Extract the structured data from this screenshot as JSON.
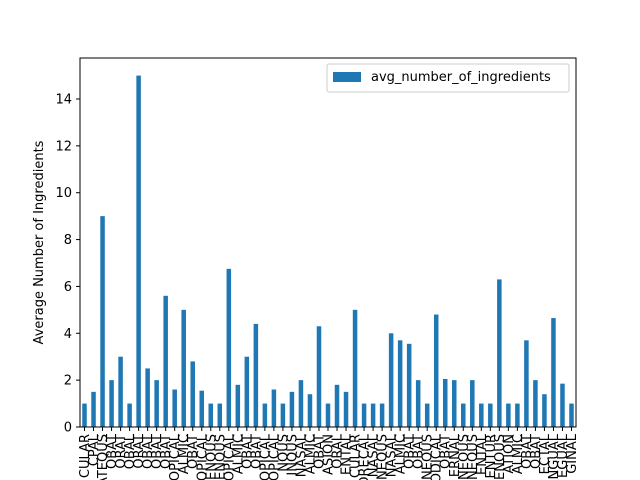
{
  "chart_data": {
    "type": "bar",
    "title": "",
    "xlabel": "",
    "ylabel": "Average Number of Ingredients",
    "ylim": [
      0,
      15.75
    ],
    "yticks": [
      0,
      2,
      4,
      6,
      8,
      10,
      12,
      14
    ],
    "grid": false,
    "legend_position": "top-right",
    "bar_color": "#1f77b4",
    "series": [
      {
        "name": "avg_number_of_ingredients",
        "values": [
          1.0,
          1.5,
          9.0,
          2.0,
          3.0,
          1.0,
          15.0,
          2.5,
          2.0,
          5.6,
          1.6,
          5.0,
          2.8,
          1.55,
          1.0,
          1.0,
          6.75,
          1.8,
          3.0,
          4.4,
          1.0,
          1.6,
          1.0,
          1.5,
          2.0,
          1.4,
          4.3,
          1.0,
          1.8,
          1.5,
          5.0,
          1.0,
          1.0,
          1.0,
          4.0,
          3.7,
          3.55,
          2.0,
          1.0,
          4.8,
          2.05,
          2.0,
          1.0,
          2.0,
          1.0,
          1.0,
          6.3,
          1.0,
          1.0,
          3.7,
          2.0,
          1.4,
          4.65,
          1.85,
          1.0
        ]
      }
    ],
    "categories": [
      "CULAR",
      "CPAL",
      "ATEQUS",
      "OBAT",
      "ORAT",
      "OBAL",
      "ORAT",
      "OBAT",
      "OBAT",
      "OBAT",
      "OPICAL",
      "ALMIC",
      "OBAT",
      "OPICAL",
      "ENOUS",
      "ENOUS",
      "OPICAL",
      "ALMIC",
      "OBAT",
      "OBAT",
      "OPICAL",
      "OPICAL",
      "NQUS",
      "INOUS",
      "NASAL",
      "ALMIC",
      "OBAT",
      "ASION",
      "ORAL",
      "ENTAL",
      "CULAR",
      "ORECAL",
      "NASAL",
      "NEOUS",
      "NASAL",
      "ALMIC",
      "OBAT",
      "OBAT",
      "NEOUS",
      "ODICAL",
      "OBAT",
      "ERNAL",
      "ENEOUS",
      "NEOUS",
      "ENTAL",
      "ENTUR",
      "ENOUS",
      "ATION",
      "ALMIC",
      "OBAT",
      "OBAT",
      "ECTAL",
      "NGUAL",
      "EGUAL",
      "GINAL"
    ]
  }
}
